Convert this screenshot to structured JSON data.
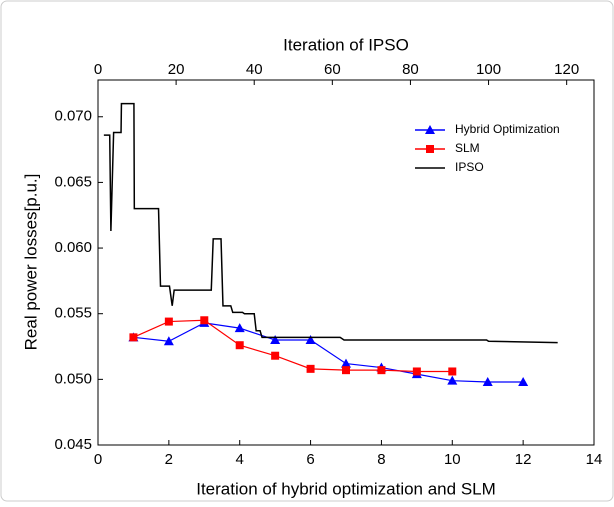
{
  "chart_data": {
    "type": "line",
    "xlabel": "Iteration of hybrid optimization and SLM",
    "x2label": "Iteration of IPSO",
    "ylabel": "Real power losses[p.u.]",
    "xlim": [
      0,
      14
    ],
    "xticks": [
      0,
      2,
      4,
      6,
      8,
      10,
      12,
      14
    ],
    "x2lim": [
      0,
      127
    ],
    "x2ticks": [
      0,
      20,
      40,
      60,
      80,
      100,
      120
    ],
    "ylim": [
      0.045,
      0.0728
    ],
    "yticks": [
      {
        "value": 0.045,
        "label": "0.045"
      },
      {
        "value": 0.05,
        "label": "0.050"
      },
      {
        "value": 0.055,
        "label": "0.055"
      },
      {
        "value": 0.06,
        "label": "0.060"
      },
      {
        "value": 0.065,
        "label": "0.065"
      },
      {
        "value": 0.07,
        "label": "0.070"
      }
    ],
    "legend": "upper right",
    "series": [
      {
        "name": "Hybrid Optimization",
        "color": "#0000ff",
        "marker": "triangle",
        "axis": "x",
        "x": [
          1,
          2,
          3,
          4,
          5,
          6,
          7,
          8,
          9,
          10,
          11,
          12
        ],
        "values": [
          0.0532,
          0.0529,
          0.0543,
          0.0539,
          0.053,
          0.053,
          0.0512,
          0.0509,
          0.0504,
          0.0499,
          0.0498,
          0.0498
        ]
      },
      {
        "name": "SLM",
        "color": "#ff0000",
        "marker": "square",
        "axis": "x",
        "x": [
          1,
          2,
          3,
          4,
          5,
          6,
          7,
          8,
          9,
          10
        ],
        "values": [
          0.0532,
          0.0544,
          0.0545,
          0.0526,
          0.0518,
          0.0508,
          0.0507,
          0.0507,
          0.0506,
          0.0506
        ]
      },
      {
        "name": "IPSO",
        "color": "#000000",
        "marker": "none",
        "axis": "x2",
        "x": [
          1.5,
          3,
          3.3,
          4,
          4.4,
          5.9,
          6,
          9.2,
          9.3,
          15.5,
          16,
          18.3,
          19,
          19.5,
          20,
          29,
          29.5,
          31.5,
          32,
          34,
          34.5,
          37,
          37.5,
          40,
          40.5,
          41.5,
          42,
          62,
          63,
          99.5,
          100,
          117.7
        ],
        "values": [
          0.0686,
          0.0686,
          0.0613,
          0.0688,
          0.0688,
          0.0688,
          0.071,
          0.071,
          0.063,
          0.063,
          0.0571,
          0.0571,
          0.0556,
          0.0568,
          0.0568,
          0.0568,
          0.0607,
          0.0607,
          0.0556,
          0.0556,
          0.0551,
          0.0551,
          0.055,
          0.055,
          0.0537,
          0.0537,
          0.0532,
          0.0532,
          0.053,
          0.053,
          0.0529,
          0.0528
        ]
      }
    ]
  }
}
